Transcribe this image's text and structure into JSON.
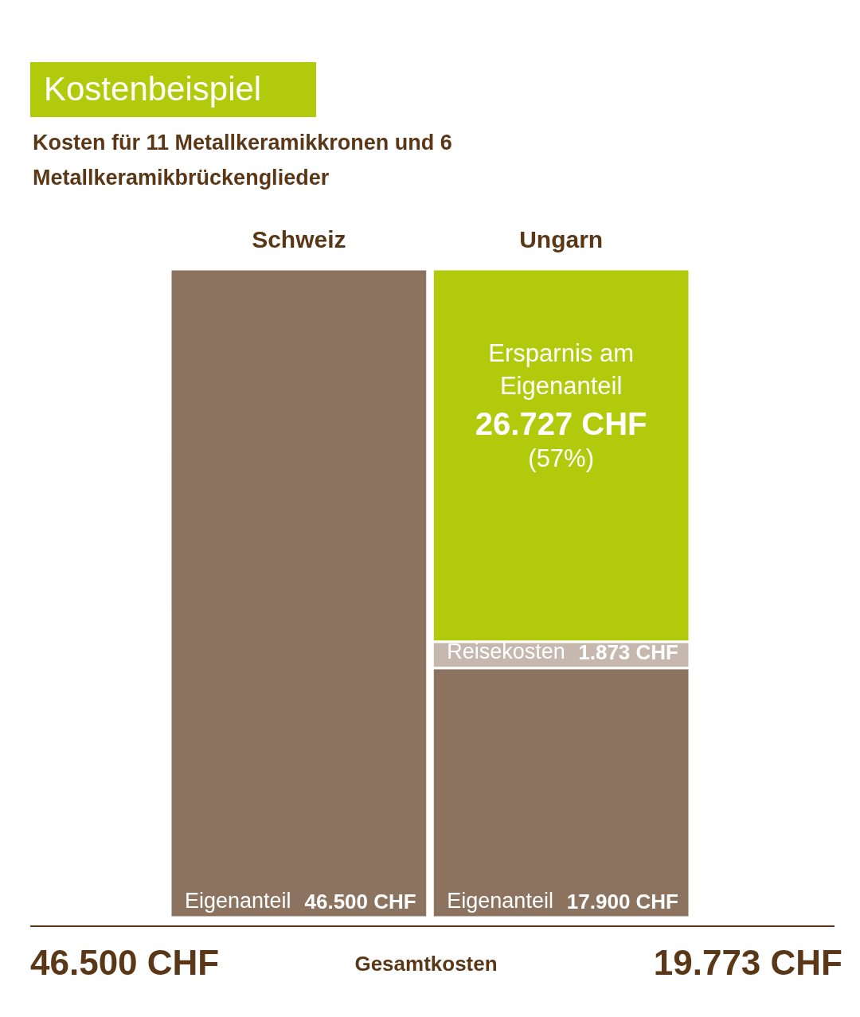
{
  "chart_data": {
    "type": "bar",
    "title": "Kostenbeispiel",
    "subtitle": "Kosten für 11 Metallkeramikkronen und 6 Metallkeramikbrückenglieder",
    "categories": [
      "Schweiz",
      "Ungarn"
    ],
    "stacked": true,
    "series": [
      {
        "name": "Eigenanteil",
        "color": "#8b7360",
        "values": [
          46500,
          17900
        ],
        "value_labels": [
          "46.500 CHF",
          "17.900 CHF"
        ]
      },
      {
        "name": "Reisekosten",
        "color": "#c6b8ae",
        "values": [
          null,
          1873
        ],
        "value_labels": [
          null,
          "1.873 CHF"
        ]
      },
      {
        "name": "Ersparnis am Eigenanteil",
        "color": "#b1cb0c",
        "values": [
          null,
          26727
        ],
        "value_labels": [
          null,
          "26.727 CHF"
        ]
      }
    ],
    "annotations": [
      "(57%)",
      "46.500 CHF",
      "Gesamtkosten",
      "19.773 CHF"
    ]
  }
}
